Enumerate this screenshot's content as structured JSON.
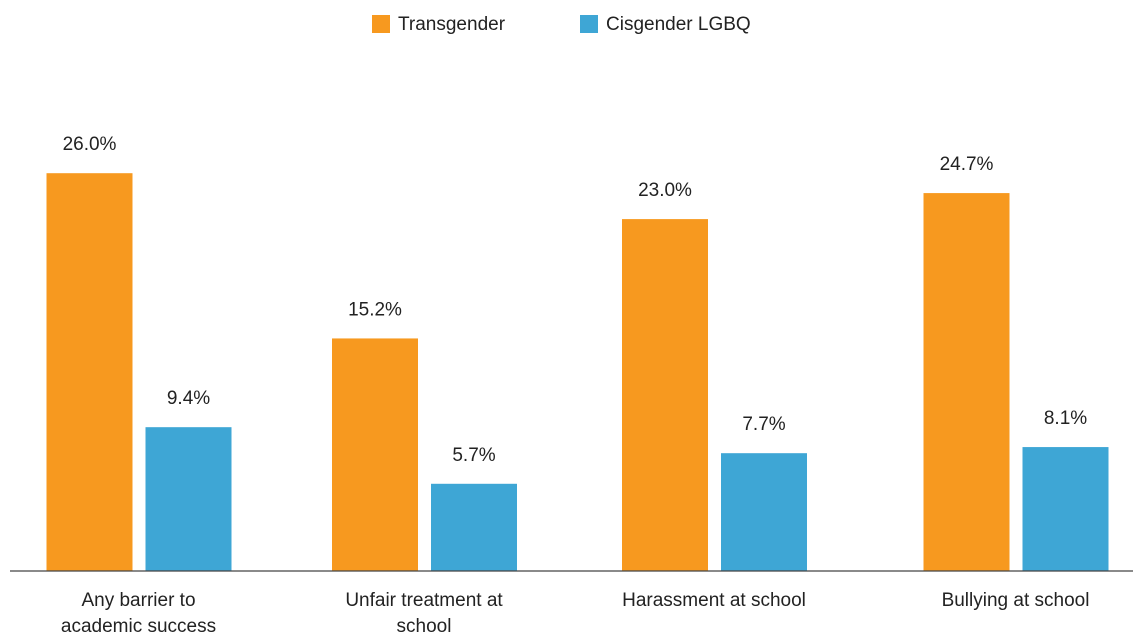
{
  "chart_data": {
    "type": "bar",
    "categories": [
      "Any barrier to academic success",
      "Unfair treatment at school",
      "Harassment at school",
      "Bullying at school"
    ],
    "series": [
      {
        "name": "Transgender",
        "color": "#f7991f",
        "values": [
          26.0,
          15.2,
          23.0,
          24.7
        ],
        "value_labels": [
          "26.0%",
          "15.2%",
          "23.0%",
          "24.7%"
        ]
      },
      {
        "name": "Cisgender LGBQ",
        "color": "#3ea6d5",
        "values": [
          9.4,
          5.7,
          7.7,
          8.1
        ],
        "value_labels": [
          "9.4%",
          "5.7%",
          "7.7%",
          "8.1%"
        ]
      }
    ],
    "legend": "top"
  }
}
